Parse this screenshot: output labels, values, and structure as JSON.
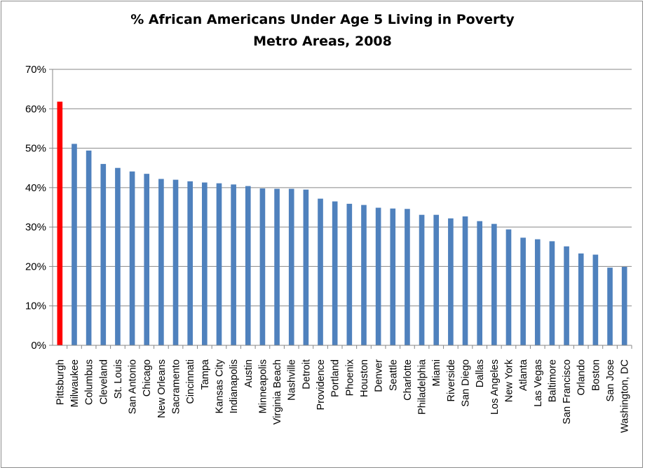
{
  "chart_data": {
    "type": "bar",
    "title": "% African Americans Under Age 5 Living in Poverty",
    "subtitle": "Metro Areas, 2008",
    "xlabel": "",
    "ylabel": "",
    "ylim": [
      0,
      70
    ],
    "y_ticks": [
      "0%",
      "10%",
      "20%",
      "30%",
      "40%",
      "50%",
      "60%",
      "70%"
    ],
    "grid": true,
    "legend": "none",
    "colors": {
      "default": "#4f81bd",
      "highlight": "#ff0000"
    },
    "highlight_category": "Pittsburgh",
    "categories": [
      "Pittsburgh",
      "Milwaukee",
      "Columbus",
      "Cleveland",
      "St. Louis",
      "San Antonio",
      "Chicago",
      "New Orleans",
      "Sacramento",
      "Cincinnati",
      "Tampa",
      "Kansas City",
      "Indianapolis",
      "Austin",
      "Minneapolis",
      "Virginia Beach",
      "Nashville",
      "Detroit",
      "Providence",
      "Portland",
      "Phoenix",
      "Houston",
      "Denver",
      "Seattle",
      "Charlotte",
      "Philadelphia",
      "Miami",
      "Riverside",
      "San Diego",
      "Dallas",
      "Los Angeles",
      "New York",
      "Atlanta",
      "Las Vegas",
      "Baltimore",
      "San Francisco",
      "Orlando",
      "Boston",
      "San Jose",
      "Washington, DC"
    ],
    "values": [
      61.8,
      51.1,
      49.4,
      46.0,
      45.0,
      44.1,
      43.5,
      42.2,
      42.0,
      41.6,
      41.3,
      41.1,
      40.8,
      40.4,
      39.8,
      39.7,
      39.7,
      39.5,
      37.2,
      36.5,
      35.9,
      35.6,
      34.9,
      34.7,
      34.6,
      33.1,
      33.1,
      32.2,
      32.7,
      31.5,
      30.8,
      29.4,
      27.3,
      26.9,
      26.4,
      25.1,
      23.3,
      23.0,
      19.7,
      19.9
    ]
  }
}
